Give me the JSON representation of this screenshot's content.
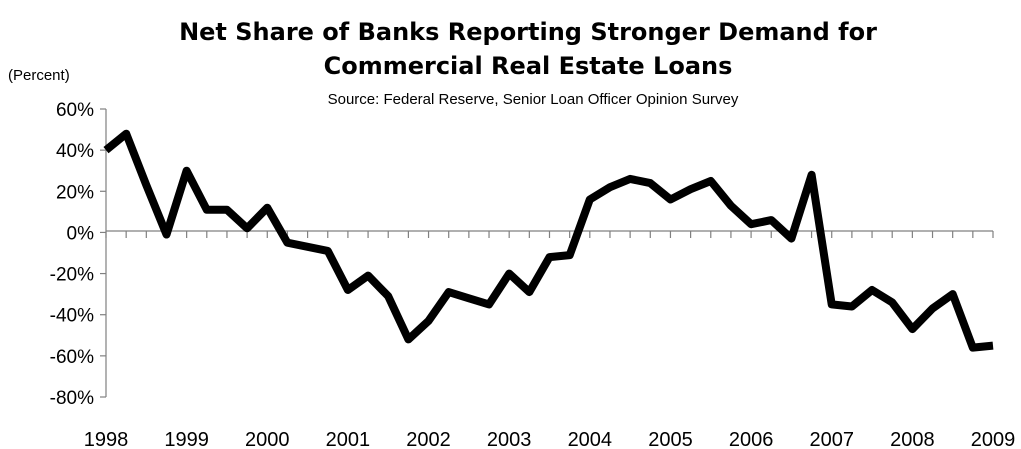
{
  "chart_data": {
    "type": "line",
    "title": "Net Share of Banks Reporting Stronger Demand for Commercial Real Estate Loans",
    "title_lines": [
      "Net Share of Banks Reporting Stronger Demand for",
      "Commercial Real Estate Loans"
    ],
    "subtitle": "Source: Federal Reserve, Senior Loan Officer Opinion Survey",
    "ylabel": "(Percent)",
    "xlabel": "",
    "ylim": [
      -80,
      60
    ],
    "xlim": [
      1998,
      2009
    ],
    "y_ticks": [
      60,
      40,
      20,
      0,
      -20,
      -40,
      -60,
      -80
    ],
    "y_tick_labels": [
      "60%",
      "40%",
      "20%",
      "0%",
      "-20%",
      "-40%",
      "-60%",
      "-80%"
    ],
    "x_ticks": [
      1998,
      1999,
      2000,
      2001,
      2002,
      2003,
      2004,
      2005,
      2006,
      2007,
      2008,
      2009
    ],
    "x_tick_labels": [
      "1998",
      "1999",
      "2000",
      "2001",
      "2002",
      "2003",
      "2004",
      "2005",
      "2006",
      "2007",
      "2008",
      "2009"
    ],
    "grid": false,
    "line_color": "#000000",
    "series": [
      {
        "x": [
          1998.0,
          1998.25,
          1998.5,
          1998.75,
          1999.0,
          1999.25,
          1999.5,
          1999.75,
          2000.0,
          2000.25,
          2000.5,
          2000.75,
          2001.0,
          2001.25,
          2001.5,
          2001.75,
          2002.0,
          2002.25,
          2002.5,
          2002.75,
          2003.0,
          2003.25,
          2003.5,
          2003.75,
          2004.0,
          2004.25,
          2004.5,
          2004.75,
          2005.0,
          2005.25,
          2005.5,
          2005.75,
          2006.0,
          2006.25,
          2006.5,
          2006.75,
          2007.0,
          2007.25,
          2007.5,
          2007.75,
          2008.0,
          2008.25,
          2008.5,
          2008.75,
          2009.0
        ],
        "values": [
          40,
          48,
          23,
          -1,
          30,
          11,
          11,
          2,
          12,
          -5,
          -7,
          -9,
          -28,
          -21,
          -31,
          -52,
          -43,
          -29,
          -32,
          -35,
          -20,
          -29,
          -12,
          -11,
          16,
          22,
          26,
          24,
          16,
          21,
          25,
          13,
          4,
          6,
          -3,
          28,
          -35,
          -36,
          -28,
          -34,
          -47,
          -37,
          -30,
          -56,
          -55
        ]
      }
    ]
  }
}
